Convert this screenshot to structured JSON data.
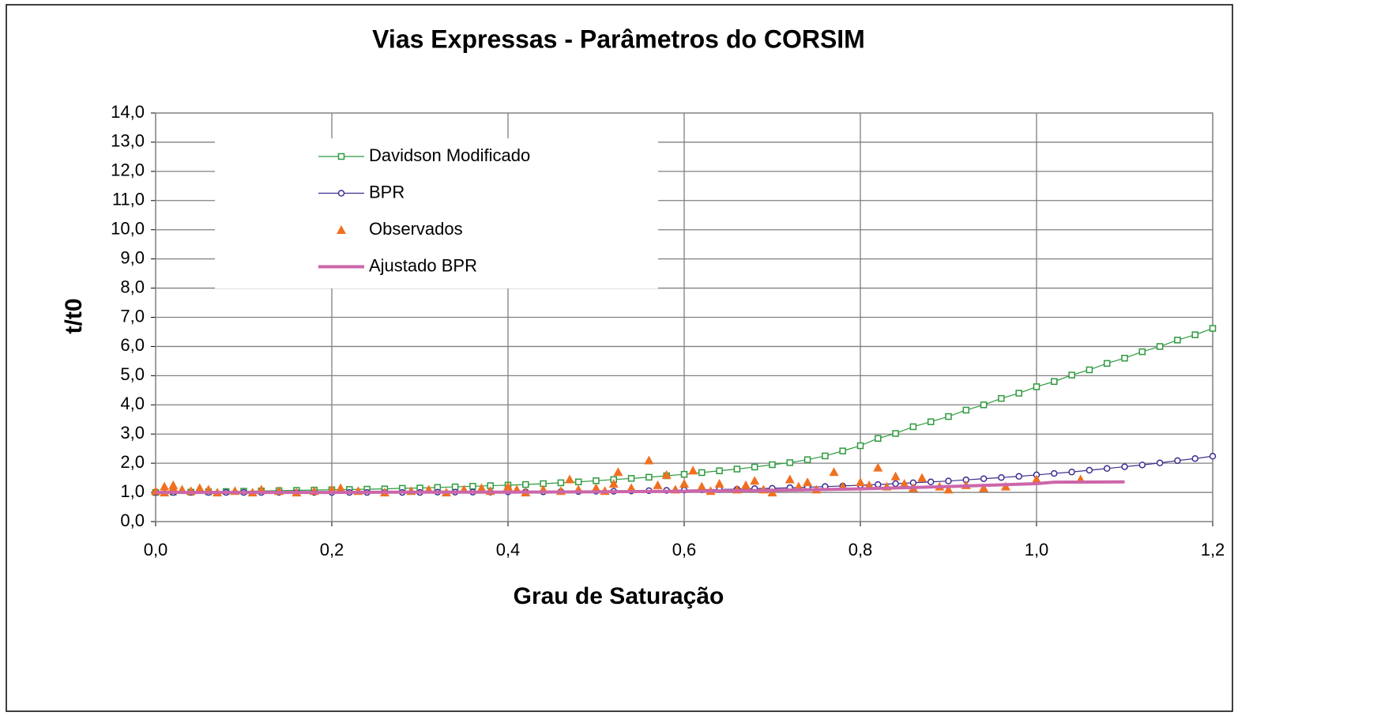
{
  "chart_data": {
    "type": "line",
    "title": "Vias Expressas - Parâmetros do CORSIM",
    "xlabel": "Grau de Saturação",
    "ylabel": "t/t0",
    "xlim": [
      0,
      1.2
    ],
    "ylim": [
      0,
      14
    ],
    "xticks": [
      {
        "value": 0,
        "label": "0,0"
      },
      {
        "value": 0.2,
        "label": "0,2"
      },
      {
        "value": 0.4,
        "label": "0,4"
      },
      {
        "value": 0.6,
        "label": "0,6"
      },
      {
        "value": 0.8,
        "label": "0,8"
      },
      {
        "value": 1.0,
        "label": "1,0"
      },
      {
        "value": 1.2,
        "label": "1,2"
      }
    ],
    "yticks": [
      {
        "value": 0,
        "label": "0,0"
      },
      {
        "value": 1,
        "label": "1,0"
      },
      {
        "value": 2,
        "label": "2,0"
      },
      {
        "value": 3,
        "label": "3,0"
      },
      {
        "value": 4,
        "label": "4,0"
      },
      {
        "value": 5,
        "label": "5,0"
      },
      {
        "value": 6,
        "label": "6,0"
      },
      {
        "value": 7,
        "label": "7,0"
      },
      {
        "value": 8,
        "label": "8,0"
      },
      {
        "value": 9,
        "label": "9,0"
      },
      {
        "value": 10,
        "label": "10,0"
      },
      {
        "value": 11,
        "label": "11,0"
      },
      {
        "value": 12,
        "label": "12,0"
      },
      {
        "value": 13,
        "label": "13,0"
      },
      {
        "value": 14,
        "label": "14,0"
      }
    ],
    "grid": true,
    "legend": "upper left",
    "series": [
      {
        "name": "Davidson Modificado",
        "color": "#2e9a3e",
        "mode": "line+markers",
        "marker": "square",
        "x": [
          0,
          0.02,
          0.04,
          0.06,
          0.08,
          0.1,
          0.12,
          0.14,
          0.16,
          0.18,
          0.2,
          0.22,
          0.24,
          0.26,
          0.28,
          0.3,
          0.32,
          0.34,
          0.36,
          0.38,
          0.4,
          0.42,
          0.44,
          0.46,
          0.48,
          0.5,
          0.52,
          0.54,
          0.56,
          0.58,
          0.6,
          0.62,
          0.64,
          0.66,
          0.68,
          0.7,
          0.72,
          0.74,
          0.76,
          0.78,
          0.8,
          0.82,
          0.84,
          0.86,
          0.88,
          0.9,
          0.92,
          0.94,
          0.96,
          0.98,
          1.0,
          1.02,
          1.04,
          1.06,
          1.08,
          1.1,
          1.12,
          1.14,
          1.16,
          1.18,
          1.2
        ],
        "values": [
          1.0,
          1.01,
          1.01,
          1.02,
          1.03,
          1.04,
          1.05,
          1.06,
          1.07,
          1.08,
          1.09,
          1.1,
          1.11,
          1.12,
          1.14,
          1.15,
          1.17,
          1.19,
          1.21,
          1.23,
          1.25,
          1.27,
          1.3,
          1.33,
          1.36,
          1.4,
          1.44,
          1.48,
          1.52,
          1.57,
          1.62,
          1.68,
          1.74,
          1.8,
          1.87,
          1.95,
          2.02,
          2.12,
          2.25,
          2.42,
          2.6,
          2.85,
          3.02,
          3.25,
          3.42,
          3.6,
          3.82,
          4.0,
          4.22,
          4.4,
          4.62,
          4.8,
          5.02,
          5.2,
          5.42,
          5.6,
          5.82,
          6.0,
          6.22,
          6.4,
          6.62
        ]
      },
      {
        "name": "BPR",
        "color": "#3b2f8f",
        "mode": "line+markers",
        "marker": "circle",
        "x": [
          0,
          0.02,
          0.04,
          0.06,
          0.08,
          0.1,
          0.12,
          0.14,
          0.16,
          0.18,
          0.2,
          0.22,
          0.24,
          0.26,
          0.28,
          0.3,
          0.32,
          0.34,
          0.36,
          0.38,
          0.4,
          0.42,
          0.44,
          0.46,
          0.48,
          0.5,
          0.52,
          0.54,
          0.56,
          0.58,
          0.6,
          0.62,
          0.64,
          0.66,
          0.68,
          0.7,
          0.72,
          0.74,
          0.76,
          0.78,
          0.8,
          0.82,
          0.84,
          0.86,
          0.88,
          0.9,
          0.92,
          0.94,
          0.96,
          0.98,
          1.0,
          1.02,
          1.04,
          1.06,
          1.08,
          1.1,
          1.12,
          1.14,
          1.16,
          1.18,
          1.2
        ],
        "values": [
          1.0,
          1.0,
          1.0,
          1.0,
          1.0,
          1.0,
          1.0,
          1.0,
          1.0,
          1.0,
          1.0,
          1.0,
          1.0,
          1.0,
          1.0,
          1.0,
          1.01,
          1.01,
          1.01,
          1.01,
          1.02,
          1.02,
          1.02,
          1.03,
          1.03,
          1.04,
          1.04,
          1.05,
          1.06,
          1.07,
          1.08,
          1.09,
          1.1,
          1.11,
          1.13,
          1.14,
          1.16,
          1.18,
          1.2,
          1.22,
          1.25,
          1.27,
          1.3,
          1.33,
          1.36,
          1.39,
          1.43,
          1.47,
          1.51,
          1.55,
          1.6,
          1.65,
          1.7,
          1.76,
          1.82,
          1.88,
          1.94,
          2.01,
          2.09,
          2.16,
          2.24
        ]
      },
      {
        "name": "Observados",
        "color": "#f07020",
        "mode": "markers",
        "marker": "triangle",
        "x": [
          0.0,
          0.01,
          0.01,
          0.02,
          0.02,
          0.03,
          0.04,
          0.05,
          0.06,
          0.07,
          0.09,
          0.11,
          0.12,
          0.14,
          0.16,
          0.18,
          0.2,
          0.21,
          0.23,
          0.26,
          0.29,
          0.31,
          0.33,
          0.35,
          0.37,
          0.38,
          0.4,
          0.41,
          0.42,
          0.44,
          0.46,
          0.47,
          0.48,
          0.5,
          0.51,
          0.52,
          0.525,
          0.54,
          0.56,
          0.57,
          0.58,
          0.59,
          0.6,
          0.61,
          0.62,
          0.63,
          0.64,
          0.66,
          0.67,
          0.68,
          0.69,
          0.7,
          0.72,
          0.73,
          0.74,
          0.75,
          0.77,
          0.78,
          0.8,
          0.81,
          0.82,
          0.83,
          0.84,
          0.85,
          0.86,
          0.87,
          0.89,
          0.9,
          0.92,
          0.94,
          0.965,
          1.0,
          1.05
        ],
        "values": [
          1.05,
          1.2,
          1.0,
          1.15,
          1.25,
          1.1,
          1.05,
          1.15,
          1.1,
          1.0,
          1.05,
          1.0,
          1.1,
          1.05,
          1.0,
          1.05,
          1.1,
          1.15,
          1.05,
          1.0,
          1.05,
          1.1,
          1.0,
          1.1,
          1.15,
          1.05,
          1.2,
          1.1,
          1.0,
          1.1,
          1.05,
          1.45,
          1.1,
          1.15,
          1.05,
          1.3,
          1.7,
          1.15,
          2.1,
          1.25,
          1.6,
          1.1,
          1.3,
          1.75,
          1.2,
          1.05,
          1.3,
          1.1,
          1.25,
          1.4,
          1.1,
          1.0,
          1.45,
          1.2,
          1.35,
          1.1,
          1.7,
          1.2,
          1.35,
          1.25,
          1.85,
          1.2,
          1.55,
          1.3,
          1.15,
          1.5,
          1.2,
          1.1,
          1.25,
          1.15,
          1.2,
          1.45,
          1.45
        ]
      },
      {
        "name": "Ajustado BPR",
        "color": "#cc66aa",
        "mode": "line",
        "marker": "none",
        "x": [
          0,
          0.1,
          0.2,
          0.3,
          0.4,
          0.5,
          0.6,
          0.7,
          0.8,
          0.9,
          1.0,
          1.02,
          1.1
        ],
        "values": [
          1.0,
          1.0,
          1.0,
          1.01,
          1.01,
          1.02,
          1.04,
          1.07,
          1.12,
          1.2,
          1.3,
          1.35,
          1.36
        ]
      }
    ]
  }
}
